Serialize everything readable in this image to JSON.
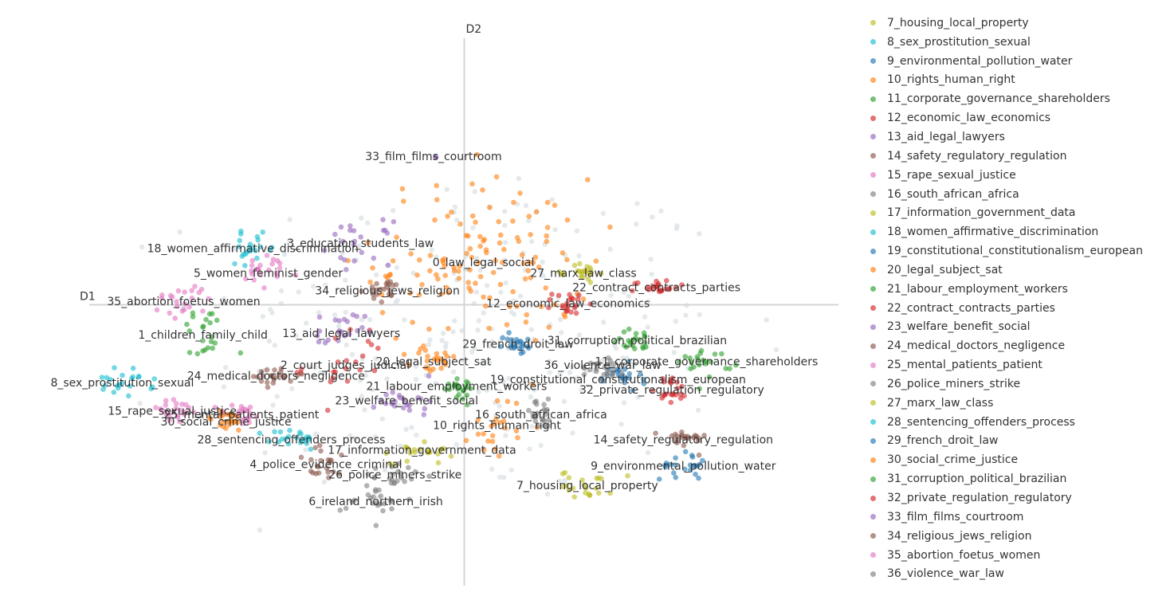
{
  "chart_data": {
    "type": "scatter",
    "xlabel": "D1",
    "ylabel": "D2",
    "xlim": [
      -9.8,
      9.8
    ],
    "ylim": [
      -7.6,
      7.6
    ],
    "axes_center": [
      0,
      0
    ],
    "grid": false,
    "legend_placement": "right",
    "background_color": "#dfe5e9",
    "series": [
      {
        "name": "0_law_legal_social",
        "color": "#ff7f0e",
        "center": [
          0.5,
          1.2
        ],
        "spread": [
          1.4,
          1.2
        ],
        "label": "0_law_legal_social"
      },
      {
        "name": "1_children_family_child",
        "color": "#2ca02c",
        "center": [
          -6.8,
          -0.85
        ],
        "spread": [
          0.35,
          0.45
        ],
        "label": "1_children_family_child"
      },
      {
        "name": "2_court_judges_judicial",
        "color": "#d62728",
        "center": [
          -3.1,
          -1.7
        ],
        "spread": [
          0.55,
          0.55
        ],
        "label": "2_court_judges_judicial"
      },
      {
        "name": "3_education_students_law",
        "color": "#9467bd",
        "center": [
          -2.7,
          1.75
        ],
        "spread": [
          0.4,
          0.3
        ],
        "label": "3_education_students_law"
      },
      {
        "name": "4_police_evidence_criminal",
        "color": "#8c564b",
        "center": [
          -3.6,
          -4.5
        ],
        "spread": [
          0.4,
          0.25
        ],
        "label": "4_police_evidence_criminal"
      },
      {
        "name": "5_women_feminist_gender",
        "color": "#e377c2",
        "center": [
          -5.1,
          0.9
        ],
        "spread": [
          0.4,
          0.25
        ],
        "label": "5_women_feminist_gender"
      },
      {
        "name": "6_ireland_northern_irish",
        "color": "#7f7f7f",
        "center": [
          -2.3,
          -5.55
        ],
        "spread": [
          0.45,
          0.25
        ],
        "label": "6_ireland_northern_irish"
      },
      {
        "name": "7_housing_local_property",
        "color": "#bcbd22",
        "center": [
          3.2,
          -5.1
        ],
        "spread": [
          0.35,
          0.2
        ],
        "label": "7_housing_local_property"
      },
      {
        "name": "8_sex_prostitution_sexual",
        "color": "#17becf",
        "center": [
          -8.9,
          -2.2
        ],
        "spread": [
          0.4,
          0.2
        ],
        "label": "8_sex_prostitution_sexual"
      },
      {
        "name": "9_environmental_pollution_water",
        "color": "#1f77b4",
        "center": [
          5.7,
          -4.55
        ],
        "spread": [
          0.3,
          0.2
        ],
        "label": "9_environmental_pollution_water"
      },
      {
        "name": "10_rights_human_right",
        "color": "#ff7f0e",
        "center": [
          0.85,
          -3.4
        ],
        "spread": [
          0.35,
          0.45
        ],
        "label": "10_rights_human_right"
      },
      {
        "name": "11_corporate_governance_shareholders",
        "color": "#2ca02c",
        "center": [
          6.3,
          -1.6
        ],
        "spread": [
          0.35,
          0.2
        ],
        "label": "11_corporate_governance_shareholders"
      },
      {
        "name": "12_economic_law_economics",
        "color": "#d62728",
        "center": [
          2.7,
          0.05
        ],
        "spread": [
          0.2,
          0.15
        ],
        "label": "12_economic_law_economics"
      },
      {
        "name": "13_aid_legal_lawyers",
        "color": "#9467bd",
        "center": [
          -3.2,
          -0.8
        ],
        "spread": [
          0.3,
          0.3
        ],
        "label": "13_aid_legal_lawyers"
      },
      {
        "name": "14_safety_regulatory_regulation",
        "color": "#8c564b",
        "center": [
          5.7,
          -3.8
        ],
        "spread": [
          0.3,
          0.15
        ],
        "label": "14_safety_regulatory_regulation"
      },
      {
        "name": "15_rape_sexual_justice",
        "color": "#e377c2",
        "center": [
          -7.6,
          -3.0
        ],
        "spread": [
          0.4,
          0.2
        ],
        "label": "15_rape_sexual_justice"
      },
      {
        "name": "16_south_african_africa",
        "color": "#7f7f7f",
        "center": [
          2.0,
          -3.1
        ],
        "spread": [
          0.25,
          0.2
        ],
        "label": "16_south_african_africa"
      },
      {
        "name": "17_information_government_data",
        "color": "#bcbd22",
        "center": [
          -1.1,
          -4.1
        ],
        "spread": [
          0.4,
          0.2
        ],
        "label": "17_information_government_data"
      },
      {
        "name": "18_women_affirmative_discrimination",
        "color": "#17becf",
        "center": [
          -5.5,
          1.6
        ],
        "spread": [
          0.3,
          0.2
        ],
        "label": "18_women_affirmative_discrimination"
      },
      {
        "name": "19_constitutional_constitutionalism_european",
        "color": "#1f77b4",
        "center": [
          4.0,
          -2.1
        ],
        "spread": [
          0.3,
          0.2
        ],
        "label": "19_constitutional_constitutionalism_european"
      },
      {
        "name": "20_legal_subject_sat",
        "color": "#ff7f0e",
        "center": [
          -0.8,
          -1.6
        ],
        "spread": [
          0.3,
          0.2
        ],
        "label": "20_legal_subject_sat"
      },
      {
        "name": "21_labour_employment_workers",
        "color": "#2ca02c",
        "center": [
          -0.2,
          -2.3
        ],
        "spread": [
          0.3,
          0.2
        ],
        "label": "21_labour_employment_workers"
      },
      {
        "name": "22_contract_contracts_parties",
        "color": "#d62728",
        "center": [
          5.0,
          0.5
        ],
        "spread": [
          0.3,
          0.1
        ],
        "label": "22_contract_contracts_parties"
      },
      {
        "name": "23_welfare_benefit_social",
        "color": "#9467bd",
        "center": [
          -1.5,
          -2.7
        ],
        "spread": [
          0.35,
          0.2
        ],
        "label": "23_welfare_benefit_social"
      },
      {
        "name": "24_medical_doctors_negligence",
        "color": "#8c564b",
        "center": [
          -4.9,
          -2.0
        ],
        "spread": [
          0.3,
          0.15
        ],
        "label": "24_medical_doctors_negligence"
      },
      {
        "name": "25_mental_patients_patient",
        "color": "#e377c2",
        "center": [
          -5.8,
          -3.1
        ],
        "spread": [
          0.3,
          0.15
        ],
        "label": "25_mental_patients_patient"
      },
      {
        "name": "26_police_miners_strike",
        "color": "#7f7f7f",
        "center": [
          -1.8,
          -4.8
        ],
        "spread": [
          0.4,
          0.2
        ],
        "label": "26_police_miners_strike"
      },
      {
        "name": "27_marx_law_class",
        "color": "#bcbd22",
        "center": [
          3.1,
          0.9
        ],
        "spread": [
          0.2,
          0.15
        ],
        "label": "27_marx_law_class"
      },
      {
        "name": "28_sentencing_offenders_process",
        "color": "#17becf",
        "center": [
          -4.5,
          -3.8
        ],
        "spread": [
          0.35,
          0.15
        ],
        "label": "28_sentencing_offenders_process"
      },
      {
        "name": "29_french_droit_law",
        "color": "#1f77b4",
        "center": [
          1.4,
          -1.1
        ],
        "spread": [
          0.2,
          0.15
        ],
        "label": "29_french_droit_law"
      },
      {
        "name": "30_social_crime_justice",
        "color": "#ff7f0e",
        "center": [
          -6.2,
          -3.3
        ],
        "spread": [
          0.3,
          0.15
        ],
        "label": "30_social_crime_justice"
      },
      {
        "name": "31_corruption_political_brazilian",
        "color": "#2ca02c",
        "center": [
          4.5,
          -1.0
        ],
        "spread": [
          0.35,
          0.15
        ],
        "label": "31_corruption_political_brazilian"
      },
      {
        "name": "32_private_regulation_regulatory",
        "color": "#d62728",
        "center": [
          5.4,
          -2.4
        ],
        "spread": [
          0.2,
          0.2
        ],
        "label": "32_private_regulation_regulatory"
      },
      {
        "name": "33_film_films_courtroom",
        "color": "#9467bd",
        "center": [
          -0.8,
          4.2
        ],
        "spread": [
          0.05,
          0.05
        ],
        "label": "33_film_films_courtroom"
      },
      {
        "name": "34_religious_jews_religion",
        "color": "#8c564b",
        "center": [
          -2.0,
          0.4
        ],
        "spread": [
          0.25,
          0.15
        ],
        "label": "34_religious_jews_religion"
      },
      {
        "name": "35_abortion_foetus_women",
        "color": "#e377c2",
        "center": [
          -7.3,
          0.1
        ],
        "spread": [
          0.4,
          0.25
        ],
        "label": "35_abortion_foetus_women"
      },
      {
        "name": "36_violence_war_law",
        "color": "#7f7f7f",
        "center": [
          3.6,
          -1.7
        ],
        "spread": [
          0.3,
          0.2
        ],
        "label": "36_violence_war_law"
      }
    ]
  },
  "legend": {
    "items": [
      {
        "label": "7_housing_local_property",
        "color": "#bcbd22"
      },
      {
        "label": "8_sex_prostitution_sexual",
        "color": "#17becf"
      },
      {
        "label": "9_environmental_pollution_water",
        "color": "#1f77b4"
      },
      {
        "label": "10_rights_human_right",
        "color": "#ff7f0e"
      },
      {
        "label": "11_corporate_governance_shareholders",
        "color": "#2ca02c"
      },
      {
        "label": "12_economic_law_economics",
        "color": "#d62728"
      },
      {
        "label": "13_aid_legal_lawyers",
        "color": "#9467bd"
      },
      {
        "label": "14_safety_regulatory_regulation",
        "color": "#8c564b"
      },
      {
        "label": "15_rape_sexual_justice",
        "color": "#e377c2"
      },
      {
        "label": "16_south_african_africa",
        "color": "#7f7f7f"
      },
      {
        "label": "17_information_government_data",
        "color": "#bcbd22"
      },
      {
        "label": "18_women_affirmative_discrimination",
        "color": "#17becf"
      },
      {
        "label": "19_constitutional_constitutionalism_european",
        "color": "#1f77b4"
      },
      {
        "label": "20_legal_subject_sat",
        "color": "#ff7f0e"
      },
      {
        "label": "21_labour_employment_workers",
        "color": "#2ca02c"
      },
      {
        "label": "22_contract_contracts_parties",
        "color": "#d62728"
      },
      {
        "label": "23_welfare_benefit_social",
        "color": "#9467bd"
      },
      {
        "label": "24_medical_doctors_negligence",
        "color": "#8c564b"
      },
      {
        "label": "25_mental_patients_patient",
        "color": "#e377c2"
      },
      {
        "label": "26_police_miners_strike",
        "color": "#7f7f7f"
      },
      {
        "label": "27_marx_law_class",
        "color": "#bcbd22"
      },
      {
        "label": "28_sentencing_offenders_process",
        "color": "#17becf"
      },
      {
        "label": "29_french_droit_law",
        "color": "#1f77b4"
      },
      {
        "label": "30_social_crime_justice",
        "color": "#ff7f0e"
      },
      {
        "label": "31_corruption_political_brazilian",
        "color": "#2ca02c"
      },
      {
        "label": "32_private_regulation_regulatory",
        "color": "#d62728"
      },
      {
        "label": "33_film_films_courtroom",
        "color": "#9467bd"
      },
      {
        "label": "34_religious_jews_religion",
        "color": "#8c564b"
      },
      {
        "label": "35_abortion_foetus_women",
        "color": "#e377c2"
      },
      {
        "label": "36_violence_war_law",
        "color": "#7f7f7f"
      }
    ]
  }
}
